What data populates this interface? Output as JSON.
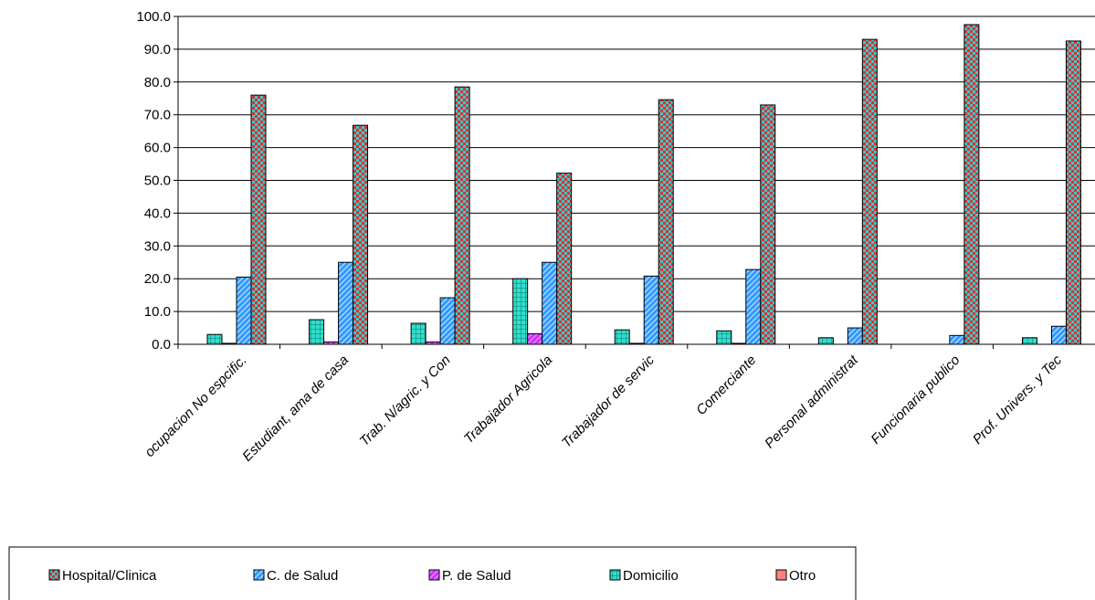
{
  "chart_data": {
    "type": "bar",
    "title": "",
    "xlabel": "",
    "ylabel": "",
    "ylim": [
      0,
      100
    ],
    "y_ticks": [
      "0.0",
      "10.0",
      "20.0",
      "30.0",
      "40.0",
      "50.0",
      "60.0",
      "70.0",
      "80.0",
      "90.0",
      "100.0"
    ],
    "grid": true,
    "legend_position": "bottom",
    "categories": [
      "ocupacion No espcific.",
      "Estudiant, ama de casa",
      "Trab. N/agric. y Con",
      "Trabajador  Agricola",
      "Trabajador de servic",
      "Comerciante",
      "Personal administrat",
      "Funcionaria publico",
      "Prof. Univers. y Tec"
    ],
    "bar_order": [
      "Domicilio",
      "P. de Salud",
      "C. de Salud",
      "Hospital/Clinica",
      "Otro"
    ],
    "series": [
      {
        "name": "Hospital/Clinica",
        "color": "#e03030",
        "pattern": "checker-cyan",
        "values": [
          76.0,
          66.8,
          78.5,
          52.2,
          74.6,
          73.0,
          93.0,
          97.5,
          92.5
        ]
      },
      {
        "name": "C. de Salud",
        "color": "#3399ff",
        "pattern": "diagonal-hatch",
        "values": [
          20.5,
          25.0,
          14.2,
          25.0,
          20.8,
          22.8,
          5.0,
          2.7,
          5.5
        ]
      },
      {
        "name": "P. de Salud",
        "color": "#cc33ff",
        "pattern": "diagonal-hatch",
        "values": [
          0.3,
          0.7,
          0.7,
          3.2,
          0.3,
          0.3,
          0.0,
          0.0,
          0.0
        ]
      },
      {
        "name": "Domicilio",
        "color": "#33ddcc",
        "pattern": "grid",
        "values": [
          3.0,
          7.5,
          6.4,
          20.0,
          4.4,
          4.1,
          2.0,
          0.0,
          2.0
        ]
      },
      {
        "name": "Otro",
        "color": "#ff8080",
        "pattern": "solid",
        "values": [
          0,
          0,
          0,
          0,
          0,
          0,
          0,
          0,
          0
        ]
      }
    ]
  }
}
